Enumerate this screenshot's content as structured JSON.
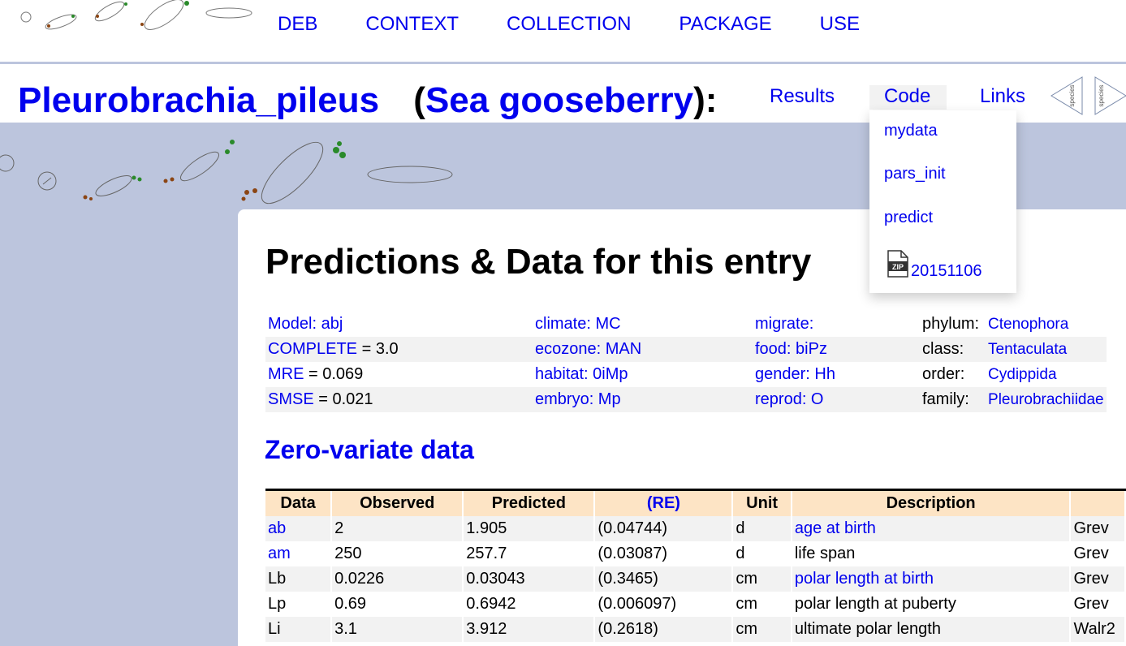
{
  "topnav": [
    "DEB",
    "CONTEXT",
    "COLLECTION",
    "PACKAGE",
    "USE"
  ],
  "title": {
    "species": "Pleurobrachia_pileus",
    "open": "(",
    "common": "Sea gooseberry",
    "close": "):"
  },
  "rightnav": {
    "results": "Results",
    "code": "Code",
    "links": "Links",
    "prev_label": "species",
    "next_label": "species"
  },
  "dropdown": {
    "items": [
      "mydata",
      "pars_init",
      "predict"
    ],
    "zip_label": "ZIP",
    "zip_link": "20151106"
  },
  "heading": "Predictions & Data for this entry",
  "info": {
    "model_label": "Model:",
    "model": "abj",
    "complete_label": "COMPLETE",
    "complete": "= 3.0",
    "mre_label": "MRE",
    "mre": "= 0.069",
    "smse_label": "SMSE",
    "smse": "= 0.021",
    "climate": "climate: MC",
    "ecozone": "ecozone: MAN",
    "habitat": "habitat: 0iMp",
    "embryo": "embryo: Mp",
    "migrate": "migrate:",
    "food": "food: biPz",
    "gender": "gender: Hh",
    "reprod": "reprod: O",
    "phylum_label": "phylum:",
    "phylum": "Ctenophora",
    "class_label": "class:",
    "class": "Tentaculata",
    "order_label": "order:",
    "order": "Cydippida",
    "family_label": "family:",
    "family": "Pleurobrachiidae"
  },
  "zero_variate_title": "Zero-variate data",
  "table": {
    "headers": [
      "Data",
      "Observed",
      "Predicted",
      "(RE)",
      "Unit",
      "Description",
      ""
    ],
    "rows": [
      [
        "ab",
        "2",
        "1.905",
        "(0.04744)",
        "d",
        "age at birth",
        "Grev"
      ],
      [
        "am",
        "250",
        "257.7",
        "(0.03087)",
        "d",
        "life span",
        "Grev"
      ],
      [
        "Lb",
        "0.0226",
        "0.03043",
        "(0.3465)",
        "cm",
        "polar length at birth",
        "Grev"
      ],
      [
        "Lp",
        "0.69",
        "0.6942",
        "(0.006097)",
        "cm",
        "polar length at puberty",
        "Grev"
      ],
      [
        "Li",
        "3.1",
        "3.912",
        "(0.2618)",
        "cm",
        "ultimate polar length",
        "Walr2"
      ]
    ]
  },
  "colors": {
    "link": "#0000ee",
    "band": "#bcc5dd",
    "header": "#fde4c5",
    "alt_row": "#f2f2f2"
  }
}
